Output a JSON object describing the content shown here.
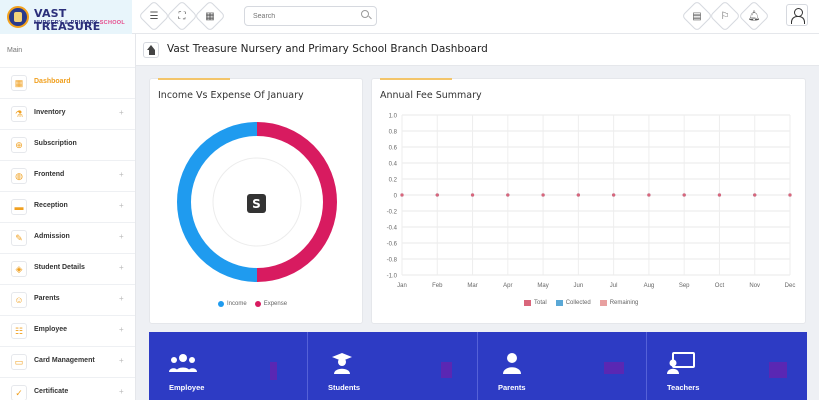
{
  "header": {
    "logo_title": "VAST TREASURE",
    "logo_sub_a": "NURSERY & PRIMARY",
    "logo_sub_b": "SCHOOL",
    "search_placeholder": "Search"
  },
  "sidebar": {
    "section": "Main",
    "items": [
      {
        "label": "Dashboard",
        "icon": "dashboard-icon",
        "active": true,
        "expandable": false
      },
      {
        "label": "Inventory",
        "icon": "inventory-icon",
        "expandable": true
      },
      {
        "label": "Subscription",
        "icon": "subscription-icon",
        "expandable": false
      },
      {
        "label": "Frontend",
        "icon": "globe-icon",
        "expandable": true
      },
      {
        "label": "Reception",
        "icon": "reception-icon",
        "expandable": true
      },
      {
        "label": "Admission",
        "icon": "admission-icon",
        "expandable": true
      },
      {
        "label": "Student Details",
        "icon": "student-icon",
        "expandable": true
      },
      {
        "label": "Parents",
        "icon": "parents-icon",
        "expandable": true
      },
      {
        "label": "Employee",
        "icon": "employee-icon",
        "expandable": true
      },
      {
        "label": "Card Management",
        "icon": "card-icon",
        "expandable": true
      },
      {
        "label": "Certificate",
        "icon": "certificate-icon",
        "expandable": true
      }
    ],
    "plus": "+"
  },
  "breadcrumb": {
    "title": "Vast Treasure Nursery and Primary School Branch Dashboard"
  },
  "income_chart": {
    "title": "Income Vs Expense Of January",
    "legend": [
      "Income",
      "Expense"
    ],
    "colors": {
      "income": "#1f9bef",
      "expense": "#d81b60"
    },
    "chart_data": {
      "type": "pie",
      "categories": [
        "Income",
        "Expense"
      ],
      "values": [
        50,
        50
      ]
    }
  },
  "fee_chart": {
    "title": "Annual Fee Summary",
    "legend": [
      "Total",
      "Collected",
      "Remaining"
    ],
    "colors": {
      "total": "#d9667b",
      "collected": "#5aa8d6",
      "remaining": "#e8a0a0"
    },
    "chart_data": {
      "type": "line",
      "categories": [
        "Jan",
        "Feb",
        "Mar",
        "Apr",
        "May",
        "Jun",
        "Jul",
        "Aug",
        "Sep",
        "Oct",
        "Nov",
        "Dec"
      ],
      "series": [
        {
          "name": "Total",
          "values": [
            0,
            0,
            0,
            0,
            0,
            0,
            0,
            0,
            0,
            0,
            0,
            0
          ]
        },
        {
          "name": "Collected",
          "values": [
            0,
            0,
            0,
            0,
            0,
            0,
            0,
            0,
            0,
            0,
            0,
            0
          ]
        },
        {
          "name": "Remaining",
          "values": [
            0,
            0,
            0,
            0,
            0,
            0,
            0,
            0,
            0,
            0,
            0,
            0
          ]
        }
      ],
      "yticks": [
        "1.0",
        "0.8",
        "0.6",
        "0.4",
        "0.2",
        "0",
        "-0.2",
        "-0.4",
        "-0.6",
        "-0.8",
        "-1.0"
      ],
      "ylim": [
        -1,
        1
      ],
      "grid": true
    }
  },
  "tiles": [
    {
      "label": "Employee",
      "icon": "employee-group-icon"
    },
    {
      "label": "Students",
      "icon": "graduate-icon"
    },
    {
      "label": "Parents",
      "icon": "parent-user-icon"
    },
    {
      "label": "Teachers",
      "icon": "teacher-board-icon"
    }
  ]
}
